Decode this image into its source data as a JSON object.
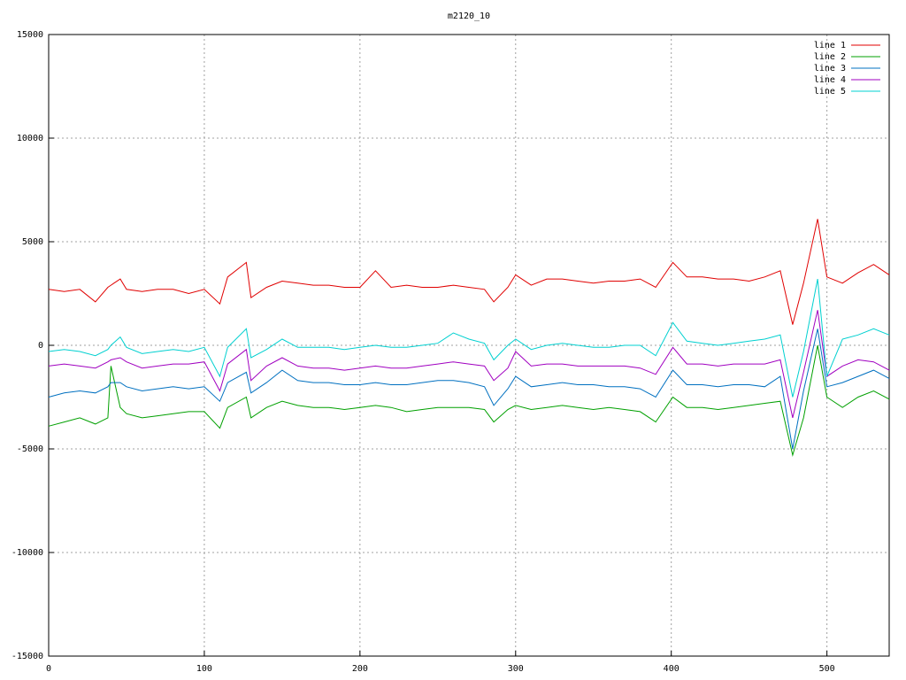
{
  "chart_data": {
    "type": "line",
    "title": "m2120_10",
    "x": [
      0,
      10,
      20,
      30,
      38,
      40,
      46,
      50,
      60,
      70,
      80,
      90,
      100,
      110,
      115,
      127,
      130,
      140,
      150,
      160,
      170,
      180,
      190,
      200,
      210,
      220,
      230,
      240,
      250,
      260,
      270,
      280,
      286,
      295,
      300,
      310,
      320,
      330,
      340,
      350,
      360,
      370,
      380,
      390,
      401,
      410,
      420,
      430,
      440,
      450,
      460,
      470,
      478,
      485,
      494,
      500,
      510,
      520,
      530,
      540
    ],
    "series": [
      {
        "name": "line 1",
        "color": "#e00000",
        "values": [
          2700,
          2600,
          2700,
          2100,
          2800,
          2900,
          3200,
          2700,
          2600,
          2700,
          2700,
          2500,
          2700,
          2000,
          3300,
          4000,
          2300,
          2800,
          3100,
          3000,
          2900,
          2900,
          2800,
          2800,
          3600,
          2800,
          2900,
          2800,
          2800,
          2900,
          2800,
          2700,
          2100,
          2800,
          3400,
          2900,
          3200,
          3200,
          3100,
          3000,
          3100,
          3100,
          3200,
          2800,
          4000,
          3300,
          3300,
          3200,
          3200,
          3100,
          3300,
          3600,
          1000,
          3000,
          6100,
          3300,
          3000,
          3500,
          3900,
          3400
        ]
      },
      {
        "name": "line 2",
        "color": "#00a000",
        "values": [
          -3900,
          -3700,
          -3500,
          -3800,
          -3500,
          -1000,
          -3000,
          -3300,
          -3500,
          -3400,
          -3300,
          -3200,
          -3200,
          -4000,
          -3000,
          -2500,
          -3500,
          -3000,
          -2700,
          -2900,
          -3000,
          -3000,
          -3100,
          -3000,
          -2900,
          -3000,
          -3200,
          -3100,
          -3000,
          -3000,
          -3000,
          -3100,
          -3700,
          -3100,
          -2900,
          -3100,
          -3000,
          -2900,
          -3000,
          -3100,
          -3000,
          -3100,
          -3200,
          -3700,
          -2500,
          -3000,
          -3000,
          -3100,
          -3000,
          -2900,
          -2800,
          -2700,
          -5300,
          -3500,
          0,
          -2500,
          -3000,
          -2500,
          -2200,
          -2600
        ]
      },
      {
        "name": "line 3",
        "color": "#0070c0",
        "values": [
          -2500,
          -2300,
          -2200,
          -2300,
          -2000,
          -1800,
          -1800,
          -2000,
          -2200,
          -2100,
          -2000,
          -2100,
          -2000,
          -2700,
          -1800,
          -1300,
          -2300,
          -1800,
          -1200,
          -1700,
          -1800,
          -1800,
          -1900,
          -1900,
          -1800,
          -1900,
          -1900,
          -1800,
          -1700,
          -1700,
          -1800,
          -2000,
          -2900,
          -2100,
          -1500,
          -2000,
          -1900,
          -1800,
          -1900,
          -1900,
          -2000,
          -2000,
          -2100,
          -2500,
          -1200,
          -1900,
          -1900,
          -2000,
          -1900,
          -1900,
          -2000,
          -1500,
          -5000,
          -2200,
          800,
          -2000,
          -1800,
          -1500,
          -1200,
          -1600
        ]
      },
      {
        "name": "line 4",
        "color": "#a000c0",
        "values": [
          -1000,
          -900,
          -1000,
          -1100,
          -800,
          -700,
          -600,
          -800,
          -1100,
          -1000,
          -900,
          -900,
          -800,
          -2200,
          -900,
          -200,
          -1700,
          -1000,
          -600,
          -1000,
          -1100,
          -1100,
          -1200,
          -1100,
          -1000,
          -1100,
          -1100,
          -1000,
          -900,
          -800,
          -900,
          -1000,
          -1700,
          -1100,
          -300,
          -1000,
          -900,
          -900,
          -1000,
          -1000,
          -1000,
          -1000,
          -1100,
          -1400,
          -100,
          -900,
          -900,
          -1000,
          -900,
          -900,
          -900,
          -700,
          -3500,
          -1300,
          1700,
          -1500,
          -1000,
          -700,
          -800,
          -1200
        ]
      },
      {
        "name": "line 5",
        "color": "#00d0d0",
        "values": [
          -300,
          -200,
          -300,
          -500,
          -200,
          0,
          400,
          -100,
          -400,
          -300,
          -200,
          -300,
          -100,
          -1500,
          -100,
          800,
          -600,
          -200,
          300,
          -100,
          -100,
          -100,
          -200,
          -100,
          0,
          -100,
          -100,
          0,
          100,
          600,
          300,
          100,
          -700,
          0,
          300,
          -200,
          0,
          100,
          0,
          -100,
          -100,
          0,
          0,
          -500,
          1100,
          200,
          100,
          0,
          100,
          200,
          300,
          500,
          -2500,
          -300,
          3200,
          -1500,
          300,
          500,
          800,
          500
        ]
      }
    ],
    "xlim": [
      0,
      540
    ],
    "xticks": [
      0,
      100,
      200,
      300,
      400,
      500
    ],
    "ylim": [
      -15000,
      15000
    ],
    "yticks": [
      -15000,
      -10000,
      -5000,
      0,
      5000,
      10000,
      15000
    ],
    "grid": true,
    "legend": "top-right"
  }
}
